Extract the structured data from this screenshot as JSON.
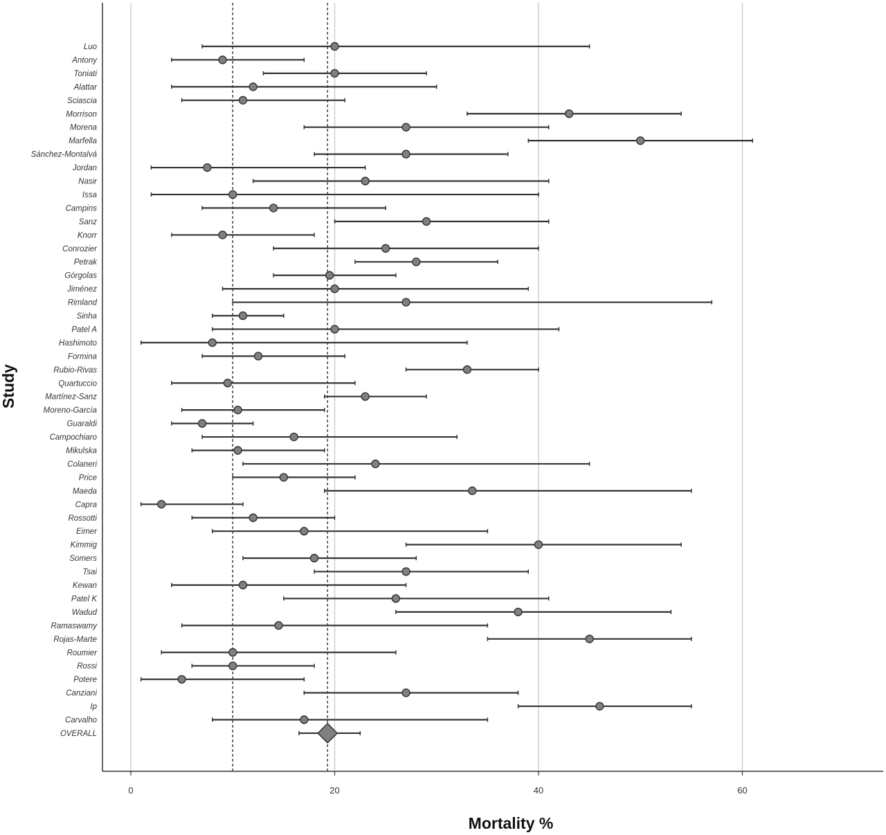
{
  "chart_data": {
    "type": "forest",
    "title": "",
    "xlabel": "Mortality %",
    "ylabel": "Study",
    "xlim": [
      -2.8,
      73.8
    ],
    "xticks": [
      0,
      20,
      40,
      60
    ],
    "grid_x": true,
    "reference_lines": [
      10,
      19.3
    ],
    "studies": [
      {
        "name": "Luo",
        "estimate": 20,
        "lower": 7,
        "upper": 45
      },
      {
        "name": "Antony",
        "estimate": 9,
        "lower": 4,
        "upper": 17
      },
      {
        "name": "Toniati",
        "estimate": 20,
        "lower": 13,
        "upper": 29
      },
      {
        "name": "Alattar",
        "estimate": 12,
        "lower": 4,
        "upper": 30
      },
      {
        "name": "Sciascia",
        "estimate": 11,
        "lower": 5,
        "upper": 21
      },
      {
        "name": "Morrison",
        "estimate": 43,
        "lower": 33,
        "upper": 54
      },
      {
        "name": "Morena",
        "estimate": 27,
        "lower": 17,
        "upper": 41
      },
      {
        "name": "Marfella",
        "estimate": 50,
        "lower": 39,
        "upper": 61
      },
      {
        "name": "Sánchez-Montalvá",
        "estimate": 27,
        "lower": 18,
        "upper": 37
      },
      {
        "name": "Jordan",
        "estimate": 7.5,
        "lower": 2,
        "upper": 23
      },
      {
        "name": "Nasir",
        "estimate": 23,
        "lower": 12,
        "upper": 41
      },
      {
        "name": "Issa",
        "estimate": 10,
        "lower": 2,
        "upper": 40
      },
      {
        "name": "Campins",
        "estimate": 14,
        "lower": 7,
        "upper": 25
      },
      {
        "name": "Sanz",
        "estimate": 29,
        "lower": 20,
        "upper": 41
      },
      {
        "name": "Knorr",
        "estimate": 9,
        "lower": 4,
        "upper": 18
      },
      {
        "name": "Conrozier",
        "estimate": 25,
        "lower": 14,
        "upper": 40
      },
      {
        "name": "Petrak",
        "estimate": 28,
        "lower": 22,
        "upper": 36
      },
      {
        "name": "Górgolas",
        "estimate": 19.5,
        "lower": 14,
        "upper": 26
      },
      {
        "name": "Jiménez",
        "estimate": 20,
        "lower": 9,
        "upper": 39
      },
      {
        "name": "Rimland",
        "estimate": 27,
        "lower": 10,
        "upper": 57
      },
      {
        "name": "Sinha",
        "estimate": 11,
        "lower": 8,
        "upper": 15
      },
      {
        "name": "Patel A",
        "estimate": 20,
        "lower": 8,
        "upper": 42
      },
      {
        "name": "Hashimoto",
        "estimate": 8,
        "lower": 1,
        "upper": 33
      },
      {
        "name": "Formina",
        "estimate": 12.5,
        "lower": 7,
        "upper": 21
      },
      {
        "name": "Rubio-Rivas",
        "estimate": 33,
        "lower": 27,
        "upper": 40
      },
      {
        "name": "Quartuccio",
        "estimate": 9.5,
        "lower": 4,
        "upper": 22
      },
      {
        "name": "Martínez-Sanz",
        "estimate": 23,
        "lower": 19,
        "upper": 29
      },
      {
        "name": "Moreno-García",
        "estimate": 10.5,
        "lower": 5,
        "upper": 19
      },
      {
        "name": "Guaraldi",
        "estimate": 7,
        "lower": 4,
        "upper": 12
      },
      {
        "name": "Campochiaro",
        "estimate": 16,
        "lower": 7,
        "upper": 32
      },
      {
        "name": "Mikulska",
        "estimate": 10.5,
        "lower": 6,
        "upper": 19
      },
      {
        "name": "Colaneri",
        "estimate": 24,
        "lower": 11,
        "upper": 45
      },
      {
        "name": "Price",
        "estimate": 15,
        "lower": 10,
        "upper": 22
      },
      {
        "name": "Maeda",
        "estimate": 33.5,
        "lower": 19,
        "upper": 55
      },
      {
        "name": "Capra",
        "estimate": 3,
        "lower": 1,
        "upper": 11
      },
      {
        "name": "Rossotti",
        "estimate": 12,
        "lower": 6,
        "upper": 20
      },
      {
        "name": "Eimer",
        "estimate": 17,
        "lower": 8,
        "upper": 35
      },
      {
        "name": "Kimmig",
        "estimate": 40,
        "lower": 27,
        "upper": 54
      },
      {
        "name": "Somers",
        "estimate": 18,
        "lower": 11,
        "upper": 28
      },
      {
        "name": "Tsai",
        "estimate": 27,
        "lower": 18,
        "upper": 39
      },
      {
        "name": "Kewan",
        "estimate": 11,
        "lower": 4,
        "upper": 27
      },
      {
        "name": "Patel K",
        "estimate": 26,
        "lower": 15,
        "upper": 41
      },
      {
        "name": "Wadud",
        "estimate": 38,
        "lower": 26,
        "upper": 53
      },
      {
        "name": "Ramaswamy",
        "estimate": 14.5,
        "lower": 5,
        "upper": 35
      },
      {
        "name": "Rojas-Marte",
        "estimate": 45,
        "lower": 35,
        "upper": 55
      },
      {
        "name": "Roumier",
        "estimate": 10,
        "lower": 3,
        "upper": 26
      },
      {
        "name": "Rossi",
        "estimate": 10,
        "lower": 6,
        "upper": 18
      },
      {
        "name": "Potere",
        "estimate": 5,
        "lower": 1,
        "upper": 17
      },
      {
        "name": "Canziani",
        "estimate": 27,
        "lower": 17,
        "upper": 38
      },
      {
        "name": "Ip",
        "estimate": 46,
        "lower": 38,
        "upper": 55
      },
      {
        "name": "Carvalho",
        "estimate": 17,
        "lower": 8,
        "upper": 35
      }
    ],
    "overall": {
      "name": "OVERALL",
      "estimate": 19.3,
      "lower": 16.5,
      "upper": 22.5
    },
    "colors": {
      "marker_fill": "#808080",
      "marker_stroke": "#333333",
      "ci_line": "#333333",
      "grid": "#c8c8c8",
      "reference_line": "#333333",
      "axis": "#333333"
    }
  }
}
